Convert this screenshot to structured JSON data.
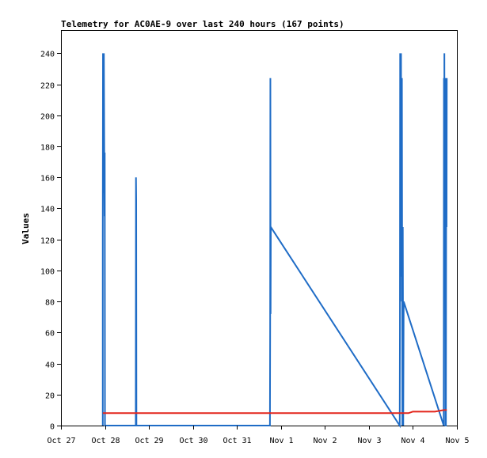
{
  "chart_data": {
    "type": "line",
    "title": "Telemetry for AC0AE-9 over last 240 hours (167 points)",
    "xlabel": "",
    "ylabel": "Values",
    "x_tick_labels": [
      "Oct 27",
      "Oct 28",
      "Oct 29",
      "Oct 30",
      "Oct 31",
      "Nov 1",
      "Nov 2",
      "Nov 3",
      "Nov 4",
      "Nov 5"
    ],
    "x_tick_values": [
      0,
      1,
      2,
      3,
      4,
      5,
      6,
      7,
      8,
      9
    ],
    "x_unit_note": "days since Oct 27",
    "xlim": [
      0,
      9
    ],
    "y_ticks": [
      0,
      20,
      40,
      60,
      80,
      100,
      120,
      140,
      160,
      180,
      200,
      220,
      240
    ],
    "ylim": [
      0,
      255
    ],
    "grid": false,
    "legend": "none",
    "series": [
      {
        "name": "",
        "color": "#1f6cc6",
        "points": [
          [
            0.95,
            0
          ],
          [
            0.95,
            121
          ],
          [
            0.955,
            240
          ],
          [
            0.96,
            150
          ],
          [
            0.965,
            240
          ],
          [
            0.97,
            170
          ],
          [
            0.975,
            240
          ],
          [
            0.98,
            208
          ],
          [
            0.99,
            135
          ],
          [
            0.995,
            176
          ],
          [
            1.0,
            0
          ],
          [
            1.7,
            0
          ],
          [
            1.705,
            160
          ],
          [
            1.71,
            145
          ],
          [
            1.715,
            0
          ],
          [
            4.75,
            0
          ],
          [
            4.755,
            64
          ],
          [
            4.76,
            224
          ],
          [
            4.765,
            72
          ],
          [
            4.77,
            128
          ],
          [
            7.7,
            0
          ],
          [
            7.705,
            64
          ],
          [
            7.71,
            240
          ],
          [
            7.715,
            120
          ],
          [
            7.72,
            208
          ],
          [
            7.725,
            96
          ],
          [
            7.73,
            240
          ],
          [
            7.735,
            130
          ],
          [
            7.74,
            224
          ],
          [
            7.745,
            80
          ],
          [
            7.75,
            224
          ],
          [
            7.76,
            0
          ],
          [
            7.77,
            128
          ],
          [
            7.78,
            0
          ],
          [
            7.79,
            80
          ],
          [
            8.7,
            0
          ],
          [
            8.705,
            224
          ],
          [
            8.71,
            112
          ],
          [
            8.715,
            240
          ],
          [
            8.72,
            150
          ],
          [
            8.725,
            224
          ],
          [
            8.73,
            100
          ],
          [
            8.735,
            192
          ],
          [
            8.74,
            0
          ],
          [
            8.75,
            0
          ],
          [
            8.76,
            224
          ],
          [
            8.765,
            128
          ],
          [
            8.77,
            224
          ]
        ]
      },
      {
        "name": "",
        "color": "#e3261c",
        "points": [
          [
            0.95,
            8
          ],
          [
            7.9,
            8
          ],
          [
            8.0,
            9
          ],
          [
            8.5,
            9
          ],
          [
            8.7,
            10
          ],
          [
            8.77,
            10
          ]
        ]
      }
    ]
  }
}
